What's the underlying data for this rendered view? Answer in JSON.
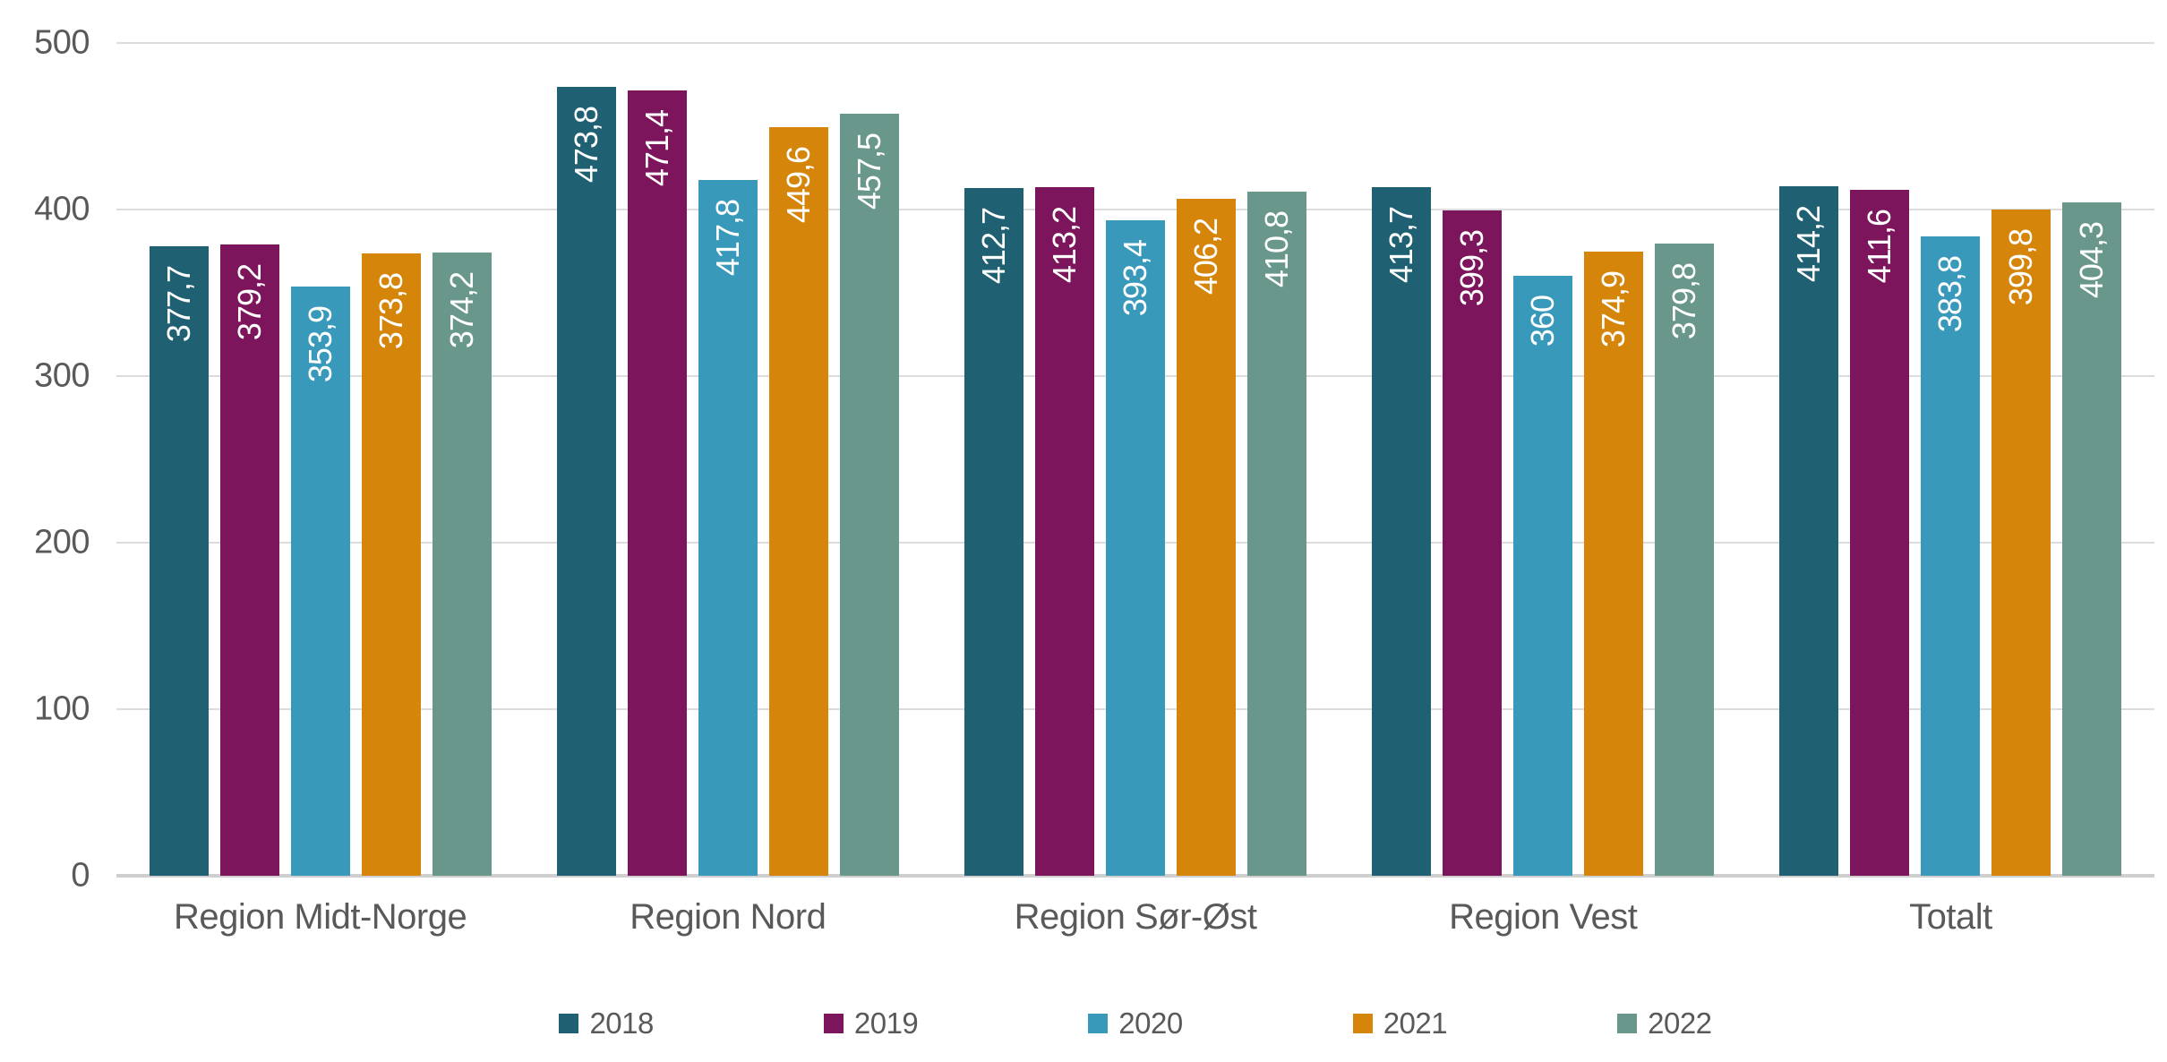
{
  "chart_data": {
    "type": "bar",
    "title": "",
    "xlabel": "",
    "ylabel": "",
    "ylim": [
      0,
      500
    ],
    "yticks": [
      0,
      100,
      200,
      300,
      400,
      500
    ],
    "grid": true,
    "legend_position": "bottom",
    "categories": [
      "Region Midt-Norge",
      "Region Nord",
      "Region Sør-Øst",
      "Region Vest",
      "Totalt"
    ],
    "series": [
      {
        "name": "2018",
        "color": "#1F6173",
        "values": [
          377.7,
          473.8,
          412.7,
          413.7,
          414.2
        ],
        "labels": [
          "377,7",
          "473,8",
          "412,7",
          "413,7",
          "414,2"
        ]
      },
      {
        "name": "2019",
        "color": "#7D155C",
        "values": [
          379.2,
          471.4,
          413.2,
          399.3,
          411.6
        ],
        "labels": [
          "379,2",
          "471,4",
          "413,2",
          "399,3",
          "411,6"
        ]
      },
      {
        "name": "2020",
        "color": "#3999BB",
        "values": [
          353.9,
          417.8,
          393.4,
          360,
          383.8
        ],
        "labels": [
          "353,9",
          "417,8",
          "393,4",
          "360",
          "383,8"
        ]
      },
      {
        "name": "2021",
        "color": "#D5850A",
        "values": [
          373.8,
          449.6,
          406.2,
          374.9,
          399.8
        ],
        "labels": [
          "373,8",
          "449,6",
          "406,2",
          "374,9",
          "399,8"
        ]
      },
      {
        "name": "2022",
        "color": "#69978B",
        "values": [
          374.2,
          457.5,
          410.8,
          379.8,
          404.3
        ],
        "labels": [
          "374,2",
          "457,5",
          "410,8",
          "379,8",
          "404,3"
        ]
      }
    ],
    "styles": {
      "axis_text_color": "#595959",
      "gridline_color": "#DCDCDC",
      "axis_line_color": "#CFCFCF",
      "bar_label_color": "#FFFFFF",
      "background": "#FFFFFF"
    }
  }
}
